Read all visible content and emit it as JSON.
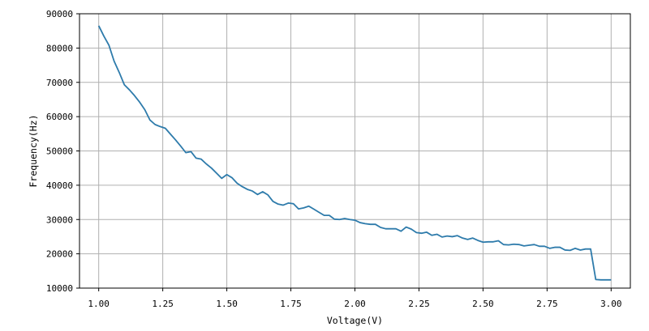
{
  "chart_data": {
    "type": "line",
    "title": "",
    "xlabel": "Voltage(V)",
    "ylabel": "Frequency(Hz)",
    "xlim": [
      0.925,
      3.075
    ],
    "ylim": [
      10000,
      90000
    ],
    "x_ticks": [
      1.0,
      1.25,
      1.5,
      1.75,
      2.0,
      2.25,
      2.5,
      2.75,
      3.0
    ],
    "x_tick_labels": [
      "1.00",
      "1.25",
      "1.50",
      "1.75",
      "2.00",
      "2.25",
      "2.50",
      "2.75",
      "3.00"
    ],
    "y_ticks": [
      10000,
      20000,
      30000,
      40000,
      50000,
      60000,
      70000,
      80000,
      90000
    ],
    "y_tick_labels": [
      "10000",
      "20000",
      "30000",
      "40000",
      "50000",
      "60000",
      "70000",
      "80000",
      "90000"
    ],
    "grid": true,
    "legend": "none",
    "series": [
      {
        "color": "#2e7bab",
        "x": [
          1.0,
          1.02,
          1.04,
          1.06,
          1.08,
          1.1,
          1.12,
          1.14,
          1.16,
          1.18,
          1.2,
          1.22,
          1.24,
          1.26,
          1.28,
          1.3,
          1.32,
          1.34,
          1.36,
          1.38,
          1.4,
          1.42,
          1.44,
          1.46,
          1.48,
          1.5,
          1.52,
          1.54,
          1.56,
          1.58,
          1.6,
          1.62,
          1.64,
          1.66,
          1.68,
          1.7,
          1.72,
          1.74,
          1.76,
          1.78,
          1.8,
          1.82,
          1.84,
          1.86,
          1.88,
          1.9,
          1.92,
          1.94,
          1.96,
          1.98,
          2.0,
          2.02,
          2.04,
          2.06,
          2.08,
          2.1,
          2.12,
          2.14,
          2.16,
          2.18,
          2.2,
          2.22,
          2.24,
          2.26,
          2.28,
          2.3,
          2.32,
          2.34,
          2.36,
          2.38,
          2.4,
          2.42,
          2.44,
          2.46,
          2.48,
          2.5,
          2.52,
          2.54,
          2.56,
          2.58,
          2.6,
          2.62,
          2.64,
          2.66,
          2.68,
          2.7,
          2.72,
          2.74,
          2.76,
          2.78,
          2.8,
          2.82,
          2.84,
          2.86,
          2.88,
          2.9,
          2.92,
          2.94,
          2.96,
          2.98,
          3.0
        ],
        "y": [
          86500,
          83500,
          80800,
          76200,
          72900,
          69300,
          67800,
          66100,
          64200,
          62000,
          59000,
          57700,
          57100,
          56600,
          54900,
          53200,
          51400,
          49500,
          49800,
          47900,
          47600,
          46200,
          45000,
          43500,
          42000,
          43100,
          42200,
          40600,
          39600,
          38800,
          38300,
          37300,
          38100,
          37200,
          35300,
          34500,
          34200,
          34800,
          34600,
          33100,
          33400,
          33900,
          33000,
          32100,
          31200,
          31200,
          30100,
          30000,
          30300,
          30000,
          29800,
          29100,
          28800,
          28600,
          28600,
          27700,
          27300,
          27300,
          27300,
          26600,
          27800,
          27200,
          26200,
          26000,
          26300,
          25400,
          25700,
          24900,
          25200,
          25000,
          25300,
          24600,
          24200,
          24600,
          23900,
          23400,
          23500,
          23500,
          23800,
          22700,
          22600,
          22800,
          22700,
          22300,
          22500,
          22700,
          22200,
          22200,
          21600,
          21900,
          21900,
          21100,
          21000,
          21600,
          21100,
          21400,
          21400,
          12500,
          12400,
          12400,
          12400
        ]
      }
    ]
  }
}
